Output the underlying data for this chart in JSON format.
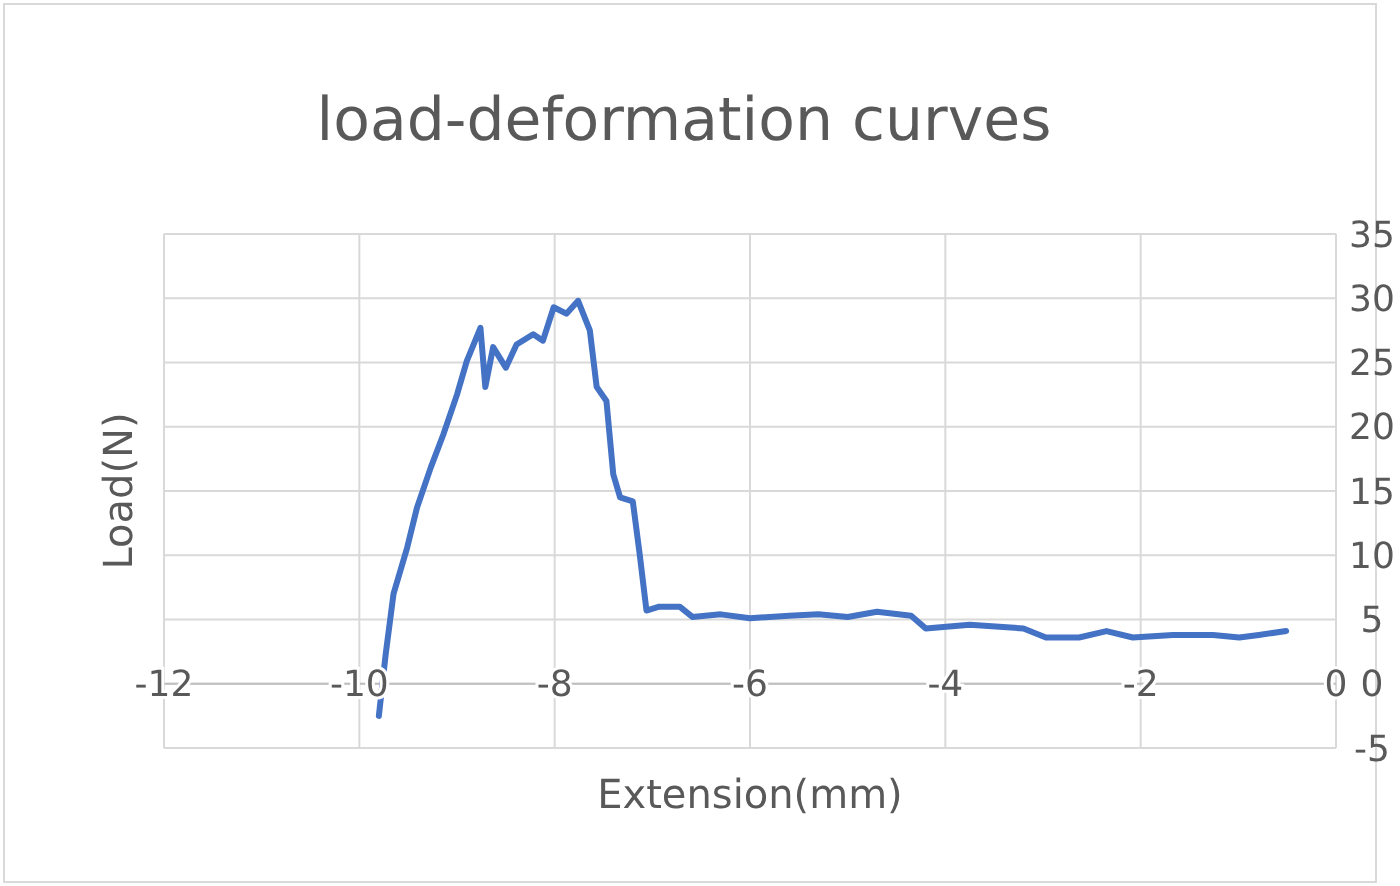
{
  "chart_data": {
    "type": "line",
    "title": "load-deformation curves",
    "xlabel": "Extension(mm)",
    "ylabel": "Load(N)",
    "xlim": [
      -12,
      0
    ],
    "xticks": [
      -12,
      -10,
      -8,
      -6,
      -4,
      -2,
      0
    ],
    "ylim": [
      -5,
      35
    ],
    "yticks": [
      -5,
      0,
      5,
      10,
      15,
      20,
      25,
      30,
      35
    ],
    "grid": true,
    "marker": "none",
    "line_style": "solid",
    "series": [
      {
        "color": "#4472c4",
        "x": [
          -9.8,
          -9.73,
          -9.65,
          -9.51,
          -9.41,
          -9.27,
          -9.14,
          -9.0,
          -8.9,
          -8.76,
          -8.71,
          -8.63,
          -8.5,
          -8.39,
          -8.22,
          -8.12,
          -8.01,
          -7.88,
          -7.76,
          -7.64,
          -7.57,
          -7.47,
          -7.4,
          -7.33,
          -7.2,
          -7.13,
          -7.06,
          -6.93,
          -6.72,
          -6.59,
          -6.3,
          -6.0,
          -5.6,
          -5.3,
          -5.0,
          -4.7,
          -4.35,
          -4.2,
          -3.75,
          -3.2,
          -2.97,
          -2.63,
          -2.35,
          -2.08,
          -1.67,
          -1.26,
          -0.99,
          -0.79,
          -0.51
        ],
        "values": [
          -2.5,
          2.3,
          7,
          10.6,
          13.7,
          16.8,
          19.4,
          22.5,
          25.1,
          27.7,
          23.1,
          26.2,
          24.6,
          26.4,
          27.2,
          26.7,
          29.3,
          28.8,
          29.8,
          27.5,
          23.1,
          22,
          16.3,
          14.5,
          14.2,
          10.1,
          5.7,
          6,
          6,
          5.2,
          5.4,
          5.1,
          5.3,
          5.4,
          5.2,
          5.6,
          5.3,
          4.3,
          4.6,
          4.3,
          3.6,
          3.6,
          4.1,
          3.6,
          3.8,
          3.8,
          3.6,
          3.8,
          4.1
        ]
      }
    ]
  }
}
